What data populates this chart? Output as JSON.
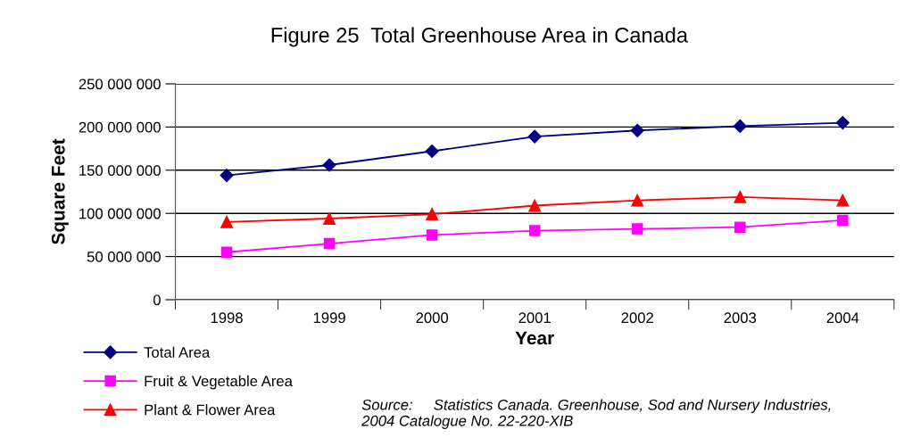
{
  "chart_data": {
    "type": "line",
    "title": "Figure 25  Total Greenhouse Area in Canada",
    "xlabel": "Year",
    "ylabel": "Square Feet",
    "categories": [
      "1998",
      "1999",
      "2000",
      "2001",
      "2002",
      "2003",
      "2004"
    ],
    "series": [
      {
        "name": "Total Area",
        "color": "#000080",
        "marker": "diamond",
        "values": [
          144000000,
          156000000,
          172000000,
          189000000,
          196000000,
          201000000,
          205000000
        ]
      },
      {
        "name": "Fruit & Vegetable Area",
        "color": "#ff00ff",
        "marker": "square",
        "values": [
          55000000,
          65000000,
          75000000,
          80000000,
          82000000,
          84000000,
          92000000
        ]
      },
      {
        "name": "Plant & Flower Area",
        "color": "#ff0000",
        "marker": "triangle",
        "values": [
          90000000,
          94000000,
          99000000,
          109000000,
          115000000,
          119000000,
          115000000
        ]
      }
    ],
    "ylim": [
      0,
      250000000
    ],
    "yticks": [
      {
        "value": 0,
        "label": "0"
      },
      {
        "value": 50000000,
        "label": "50 000 000"
      },
      {
        "value": 100000000,
        "label": "100 000 000"
      },
      {
        "value": 150000000,
        "label": "150 000 000"
      },
      {
        "value": 200000000,
        "label": "200 000 000"
      },
      {
        "value": 250000000,
        "label": "250 000 000"
      }
    ],
    "grid": "y",
    "legend": "bottom left",
    "annotations": [
      "Source:     Statistics Canada. Greenhouse, Sod and Nursery Industries,\n2004 Catalogue No. 22-220-XIB"
    ]
  }
}
